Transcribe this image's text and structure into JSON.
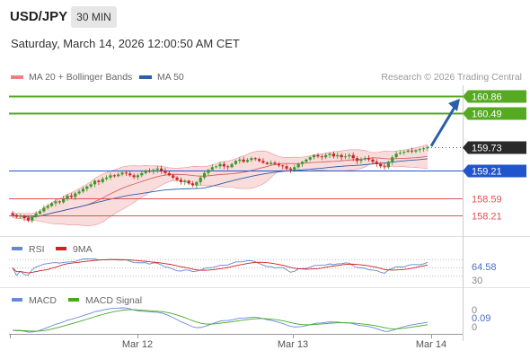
{
  "header": {
    "symbol": "USD/JPY",
    "timeframe": "30 MIN",
    "datetime": "Saturday, March 14, 2026 12:00:50 AM CET",
    "source": "Research © 2026 Trading Central"
  },
  "colors": {
    "up": "#3a9a2a",
    "down": "#cc2222",
    "ma50": "#2b5fa8",
    "bb_fill": "#f6cfcf",
    "bb_line": "#e89090",
    "resistance": "#55aa22",
    "support_blue": "#2255cc",
    "support_red": "#e05050",
    "rsi": "#6688cc",
    "rsi_ma": "#cc2222",
    "macd": "#6688dd",
    "macd_signal": "#44aa22",
    "arrow": "#2b5fa8"
  },
  "chart_data": [
    {
      "type": "candlestick",
      "title": "USD/JPY",
      "legend": [
        {
          "name": "MA 20 + Bollinger Bands",
          "color": "#f08080"
        },
        {
          "name": "MA 50",
          "color": "#2b5fa8"
        }
      ],
      "x_ticks": [
        "Mar 12",
        "Mar 13",
        "Mar 14"
      ],
      "y_range": [
        157.9,
        161.1
      ],
      "price_levels": [
        {
          "value": 160.86,
          "label": "160.86",
          "kind": "resistance"
        },
        {
          "value": 160.49,
          "label": "160.49",
          "kind": "resistance"
        },
        {
          "value": 159.73,
          "label": "159.73",
          "kind": "last"
        },
        {
          "value": 159.21,
          "label": "159.21",
          "kind": "pivot"
        },
        {
          "value": 158.59,
          "label": "158.59",
          "kind": "support"
        },
        {
          "value": 158.21,
          "label": "158.21",
          "kind": "support"
        }
      ],
      "closes": [
        158.22,
        158.18,
        158.2,
        158.15,
        158.1,
        158.18,
        158.25,
        158.3,
        158.38,
        158.42,
        158.48,
        158.52,
        158.5,
        158.58,
        158.65,
        158.62,
        158.7,
        158.74,
        158.8,
        158.85,
        158.9,
        158.98,
        158.95,
        159.02,
        159.05,
        159.1,
        159.08,
        159.12,
        159.16,
        159.14,
        159.1,
        159.06,
        159.1,
        159.15,
        159.2,
        159.18,
        159.22,
        159.25,
        159.2,
        159.15,
        159.1,
        159.05,
        159.0,
        158.95,
        158.98,
        158.92,
        158.88,
        158.95,
        159.05,
        159.15,
        159.22,
        159.28,
        159.3,
        159.35,
        159.3,
        159.28,
        159.35,
        159.42,
        159.45,
        159.4,
        159.44,
        159.48,
        159.46,
        159.42,
        159.38,
        159.35,
        159.38,
        159.35,
        159.32,
        159.3,
        159.25,
        159.22,
        159.28,
        159.35,
        159.4,
        159.45,
        159.5,
        159.55,
        159.52,
        159.5,
        159.55,
        159.58,
        159.52,
        159.55,
        159.5,
        159.52,
        159.55,
        159.48,
        159.42,
        159.45,
        159.48,
        159.45,
        159.4,
        159.35,
        159.3,
        159.28,
        159.4,
        159.5,
        159.58,
        159.6,
        159.62,
        159.65,
        159.63,
        159.66,
        159.68,
        159.7,
        159.73
      ]
    },
    {
      "type": "line",
      "title": "RSI",
      "legend": [
        {
          "name": "RSI",
          "color": "#6688cc"
        },
        {
          "name": "9MA",
          "color": "#cc2222"
        }
      ],
      "y_range": [
        25,
        75
      ],
      "y_ticks": [
        30,
        70
      ],
      "last_value": "64.58",
      "tick_labels": [
        "64.58",
        "30"
      ]
    },
    {
      "type": "line",
      "title": "MACD",
      "legend": [
        {
          "name": "MACD",
          "color": "#6688dd"
        },
        {
          "name": "MACD Signal",
          "color": "#44aa22"
        }
      ],
      "y_ticks": [
        0
      ],
      "last_value": "0.09",
      "tick_labels": [
        "0",
        "0.09",
        "0"
      ]
    }
  ]
}
